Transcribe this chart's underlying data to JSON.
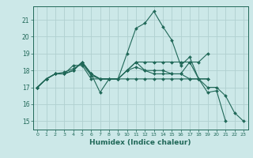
{
  "xlabel": "Humidex (Indice chaleur)",
  "ylabel": "",
  "background_color": "#cce8e8",
  "grid_color": "#b0d0d0",
  "line_color": "#206858",
  "xlim": [
    -0.5,
    23.5
  ],
  "ylim": [
    14.5,
    21.8
  ],
  "yticks": [
    15,
    16,
    17,
    18,
    19,
    20,
    21
  ],
  "xticks": [
    0,
    1,
    2,
    3,
    4,
    5,
    6,
    7,
    8,
    9,
    10,
    11,
    12,
    13,
    14,
    15,
    16,
    17,
    18,
    19,
    20,
    21,
    22,
    23
  ],
  "series": [
    [
      17.0,
      17.5,
      17.8,
      17.8,
      18.0,
      18.5,
      17.8,
      16.7,
      17.5,
      17.5,
      19.0,
      20.5,
      20.8,
      21.5,
      20.6,
      19.8,
      18.3,
      18.8,
      17.5,
      16.7,
      16.8,
      15.0,
      null,
      null
    ],
    [
      17.0,
      17.5,
      17.8,
      17.9,
      18.1,
      18.4,
      17.7,
      17.5,
      17.5,
      17.5,
      18.0,
      18.2,
      18.0,
      17.8,
      17.8,
      17.8,
      17.8,
      18.5,
      18.5,
      19.0,
      null,
      null,
      null,
      null
    ],
    [
      17.0,
      17.5,
      17.8,
      17.8,
      18.0,
      18.5,
      17.8,
      17.5,
      17.5,
      17.5,
      18.0,
      18.5,
      18.0,
      18.0,
      18.0,
      17.8,
      17.8,
      17.5,
      17.5,
      17.5,
      null,
      null,
      null,
      null
    ],
    [
      17.0,
      17.5,
      17.8,
      17.8,
      18.0,
      18.5,
      17.8,
      17.5,
      17.5,
      17.5,
      18.0,
      18.5,
      18.5,
      18.5,
      18.5,
      18.5,
      18.5,
      18.5,
      17.5,
      17.5,
      null,
      null,
      null,
      null
    ],
    [
      17.0,
      17.5,
      17.8,
      17.8,
      18.3,
      18.3,
      17.5,
      17.5,
      17.5,
      17.5,
      17.5,
      17.5,
      17.5,
      17.5,
      17.5,
      17.5,
      17.5,
      17.5,
      17.5,
      17.0,
      17.0,
      16.5,
      15.5,
      15.0
    ]
  ]
}
